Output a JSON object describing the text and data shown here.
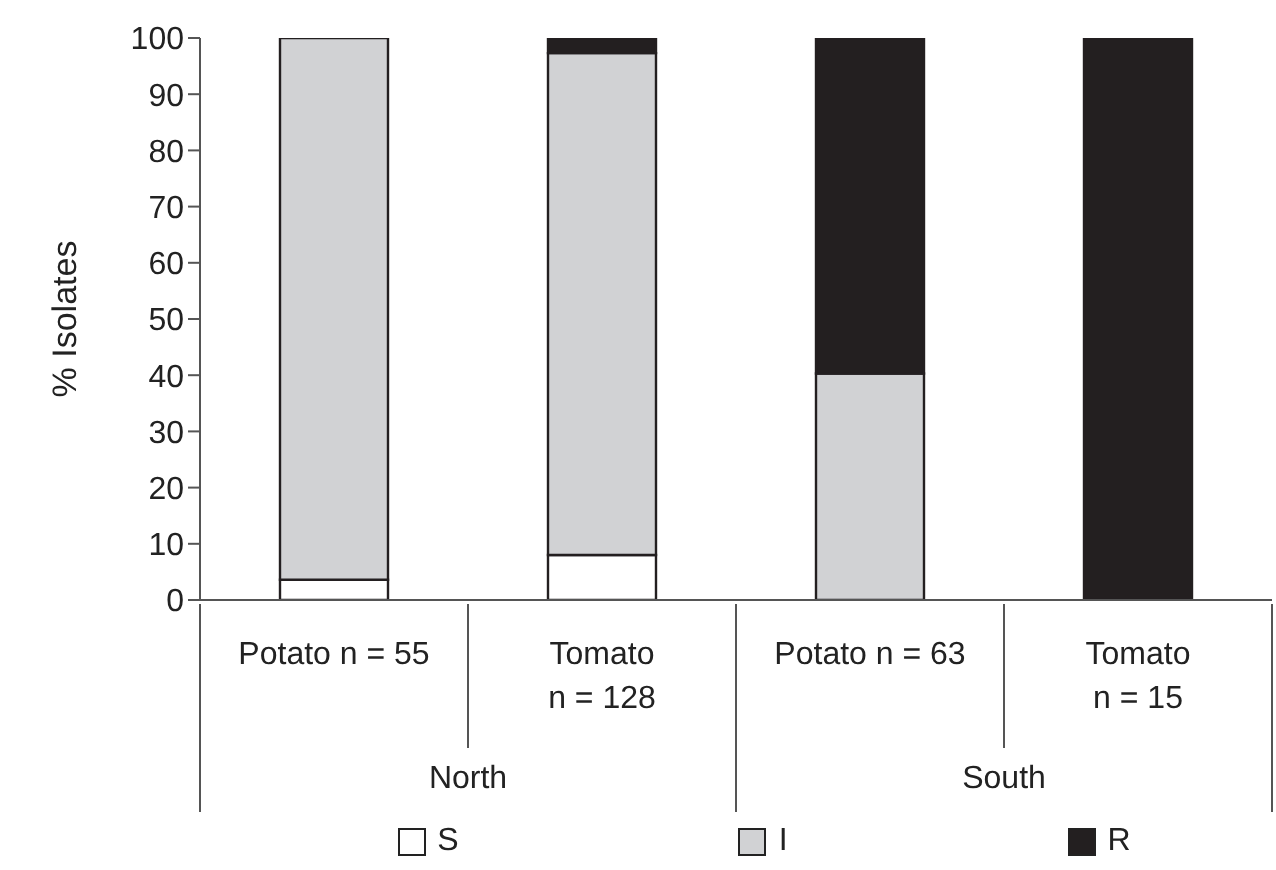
{
  "chart_data": {
    "type": "bar",
    "stacked": true,
    "ylabel": "% Isolates",
    "categories": [
      "Potato n = 55",
      "Tomato\nn = 128",
      "Potato n = 63",
      "Tomato\nn = 15"
    ],
    "series": [
      {
        "name": "S",
        "color": "#ffffff",
        "values": [
          3.6,
          8,
          0,
          0
        ]
      },
      {
        "name": "I",
        "color": "#d1d2d4",
        "values": [
          96.4,
          89.3,
          40.3,
          0
        ]
      },
      {
        "name": "R",
        "color": "#231f20",
        "values": [
          0,
          2.7,
          59.7,
          100
        ]
      }
    ],
    "annotations": [
      "North",
      "South"
    ],
    "ylim": [
      0,
      100
    ],
    "yticks": [
      0,
      10,
      20,
      30,
      40,
      50,
      60,
      70,
      80,
      90,
      100
    ],
    "grid": false,
    "legend": "bottom"
  }
}
